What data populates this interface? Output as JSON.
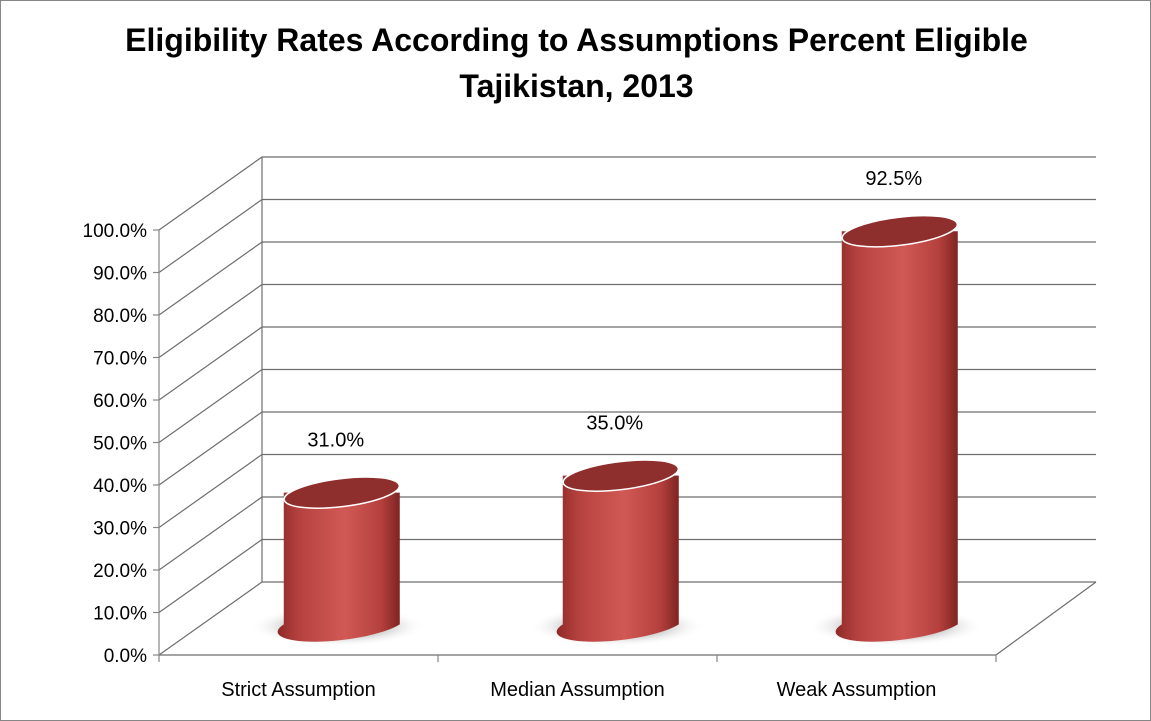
{
  "chart_data": {
    "type": "bar",
    "style": "3d-cylinder",
    "title": "Eligibility Rates According to Assumptions Percent Eligible",
    "subtitle": "Tajikistan, 2013",
    "xlabel": "",
    "ylabel": "",
    "categories": [
      "Strict Assumption",
      "Median Assumption",
      "Weak Assumption"
    ],
    "values": [
      31.0,
      35.0,
      92.5
    ],
    "data_labels": [
      "31.0%",
      "35.0%",
      "92.5%"
    ],
    "ylim": [
      0,
      100
    ],
    "yticks": [
      "0.0%",
      "10.0%",
      "20.0%",
      "30.0%",
      "40.0%",
      "50.0%",
      "60.0%",
      "70.0%",
      "80.0%",
      "90.0%",
      "100.0%"
    ],
    "grid": true,
    "legend": "none",
    "colors": {
      "bar": "#c0504d",
      "bar_top": "#8f2f2d",
      "grid": "#6e6e6e",
      "axis": "#868686"
    }
  }
}
